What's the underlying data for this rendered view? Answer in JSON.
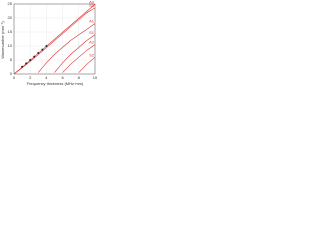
{
  "chart_data": {
    "type": "line",
    "x_label": "Frequency thickness (MHz·mm)",
    "y_label": "Wavenumber (mm⁻¹)",
    "x": [
      0,
      1,
      2,
      3,
      4,
      5,
      6,
      7,
      8,
      9,
      10
    ],
    "xlim": [
      0,
      10
    ],
    "ylim": [
      0,
      25
    ],
    "xticks": [
      0,
      2,
      4,
      6,
      8,
      10
    ],
    "yticks": [
      0,
      5,
      10,
      15,
      20,
      25
    ],
    "grid": true,
    "series": [
      {
        "name": "A0",
        "color": "#e03030",
        "values": [
          0,
          2.4,
          4.9,
          7.4,
          9.9,
          12.4,
          14.9,
          17.4,
          19.9,
          22.4,
          24.9
        ]
      },
      {
        "name": "S0",
        "color": "#e03030",
        "values": [
          0,
          2.2,
          4.5,
          6.9,
          9.4,
          11.9,
          14.4,
          16.9,
          19.4,
          21.9,
          23.6
        ]
      },
      {
        "name": "A1",
        "color": "#e03030",
        "values": [
          null,
          null,
          null,
          0.5,
          4,
          7,
          9.5,
          12,
          14,
          16,
          18
        ]
      },
      {
        "name": "S1",
        "color": "#e03030",
        "values": [
          null,
          null,
          null,
          null,
          null,
          0.5,
          4,
          7,
          9.5,
          12,
          14
        ]
      },
      {
        "name": "A2",
        "color": "#e03030",
        "values": [
          null,
          null,
          null,
          null,
          null,
          null,
          0.5,
          3.5,
          6,
          8.5,
          10.5
        ]
      },
      {
        "name": "S2",
        "color": "#e03030",
        "values": [
          null,
          null,
          null,
          null,
          null,
          null,
          null,
          null,
          0.5,
          3.5,
          6
        ]
      },
      {
        "color": "#222222",
        "marker": true,
        "x": [
          1,
          1.5,
          2,
          2.5,
          3,
          3.5,
          4
        ],
        "values": [
          2.6,
          3.8,
          5,
          6.2,
          7.5,
          8.7,
          10
        ]
      }
    ]
  }
}
